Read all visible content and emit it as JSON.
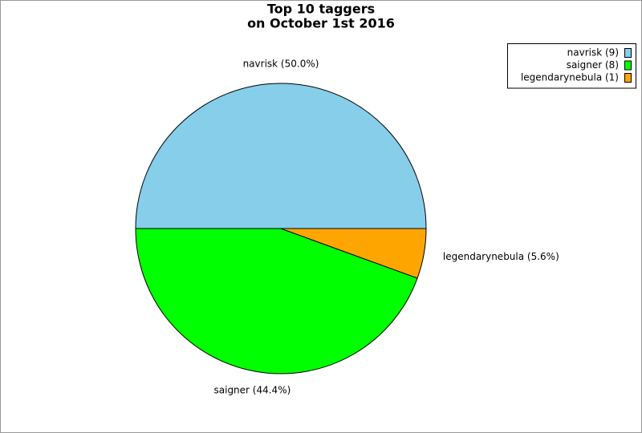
{
  "chart_data": {
    "type": "pie",
    "title": "Top 10 taggers",
    "subtitle": "on October 1st 2016",
    "categories": [
      "navrisk",
      "saigner",
      "legendarynebula"
    ],
    "values": [
      9,
      8,
      1
    ],
    "colors": [
      "#87ceeb",
      "#00ff00",
      "#ffa500"
    ],
    "slice_labels": [
      "navrisk (50.0%)",
      "saigner (44.4%)",
      "legendarynebula (5.6%)"
    ],
    "legend_labels": [
      "navrisk (9)",
      "saigner (8)",
      "legendarynebula (1)"
    ],
    "legend": "top-right"
  }
}
